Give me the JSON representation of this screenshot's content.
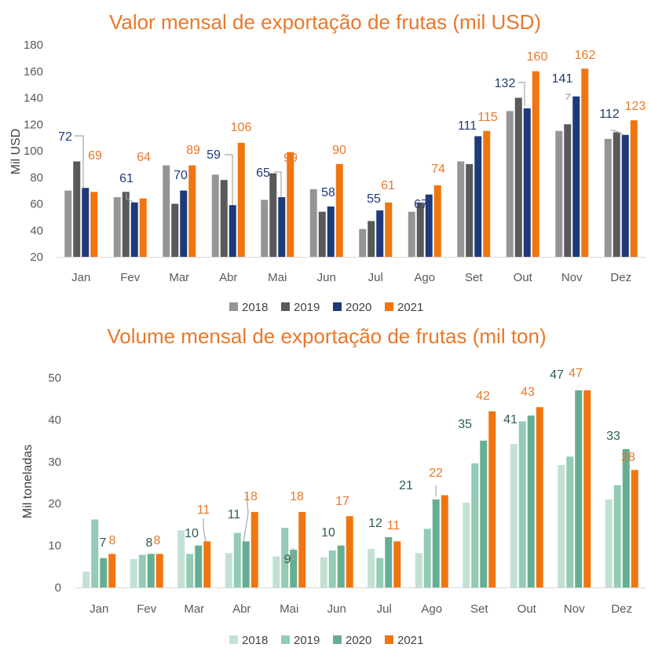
{
  "chart_data": [
    {
      "type": "bar",
      "title": "Valor mensal de exportação de frutas (mil USD)",
      "xlabel": "",
      "ylabel": "Mil USD",
      "ylim": [
        20,
        180
      ],
      "yticks": [
        20,
        40,
        60,
        80,
        100,
        120,
        140,
        160,
        180
      ],
      "legend_position": "bottom",
      "categories": [
        "Jan",
        "Fev",
        "Mar",
        "Abr",
        "Mai",
        "Jun",
        "Jul",
        "Ago",
        "Set",
        "Out",
        "Nov",
        "Dez"
      ],
      "series": [
        {
          "name": "2018",
          "color": "#959595",
          "values": [
            70,
            65,
            89,
            82,
            63,
            71,
            41,
            54,
            92,
            130,
            115,
            109
          ]
        },
        {
          "name": "2019",
          "color": "#595959",
          "values": [
            92,
            69,
            60,
            78,
            83,
            54,
            47,
            61,
            90,
            140,
            120,
            114
          ]
        },
        {
          "name": "2020",
          "color": "#1F3A7A",
          "values": [
            72,
            61,
            70,
            59,
            65,
            58,
            55,
            67,
            111,
            132,
            141,
            112
          ]
        },
        {
          "name": "2021",
          "color": "#F0750F",
          "values": [
            69,
            64,
            89,
            106,
            99,
            90,
            61,
            74,
            115,
            160,
            162,
            123
          ]
        }
      ],
      "data_labels": [
        {
          "series": "2020",
          "values": [
            "72",
            "61",
            "70",
            "59",
            "65",
            "58",
            "55",
            "67",
            "111",
            "132",
            "141",
            "112"
          ],
          "color": "#1F3A7A"
        },
        {
          "series": "2021",
          "values": [
            "69",
            "64",
            "89",
            "106",
            "99",
            "90",
            "61",
            "74",
            "115",
            "160",
            "162",
            "123"
          ],
          "color": "#E8782A"
        }
      ]
    },
    {
      "type": "bar",
      "title": "Volume mensal de exportação de frutas (mil ton)",
      "xlabel": "",
      "ylabel": "Mil toneladas",
      "ylim": [
        0,
        50
      ],
      "yticks": [
        0,
        10,
        20,
        30,
        40,
        50
      ],
      "legend_position": "bottom",
      "categories": [
        "Jan",
        "Fev",
        "Mar",
        "Abr",
        "Mai",
        "Jun",
        "Jul",
        "Ago",
        "Set",
        "Out",
        "Nov",
        "Dez"
      ],
      "series": [
        {
          "name": "2018",
          "color": "#C3E0D4",
          "values": [
            3.8,
            6.8,
            13.6,
            8.2,
            7.4,
            7.2,
            9.2,
            8.2,
            20.2,
            34.2,
            29.2,
            21.0
          ]
        },
        {
          "name": "2019",
          "color": "#93CBB4",
          "values": [
            16.2,
            7.8,
            8.0,
            13.0,
            14.2,
            8.8,
            7.0,
            14.0,
            29.6,
            39.6,
            31.2,
            24.4
          ]
        },
        {
          "name": "2020",
          "color": "#66AE92",
          "values": [
            7,
            8,
            10,
            11,
            9,
            10,
            12,
            21,
            35,
            41,
            47,
            33
          ]
        },
        {
          "name": "2021",
          "color": "#F0750F",
          "values": [
            8,
            8,
            11,
            18,
            18,
            17,
            11,
            22,
            42,
            43,
            47,
            28
          ]
        }
      ],
      "data_labels": [
        {
          "series": "2020",
          "values": [
            "7",
            "8",
            "10",
            "11",
            "9",
            "10",
            "12",
            "21",
            "35",
            "41",
            "47",
            "33"
          ],
          "color": "#2F5E4E"
        },
        {
          "series": "2021",
          "values": [
            "8",
            "8",
            "11",
            "18",
            "18",
            "17",
            "11",
            "22",
            "42",
            "43",
            "47",
            "28"
          ],
          "color": "#E8782A"
        }
      ]
    }
  ]
}
